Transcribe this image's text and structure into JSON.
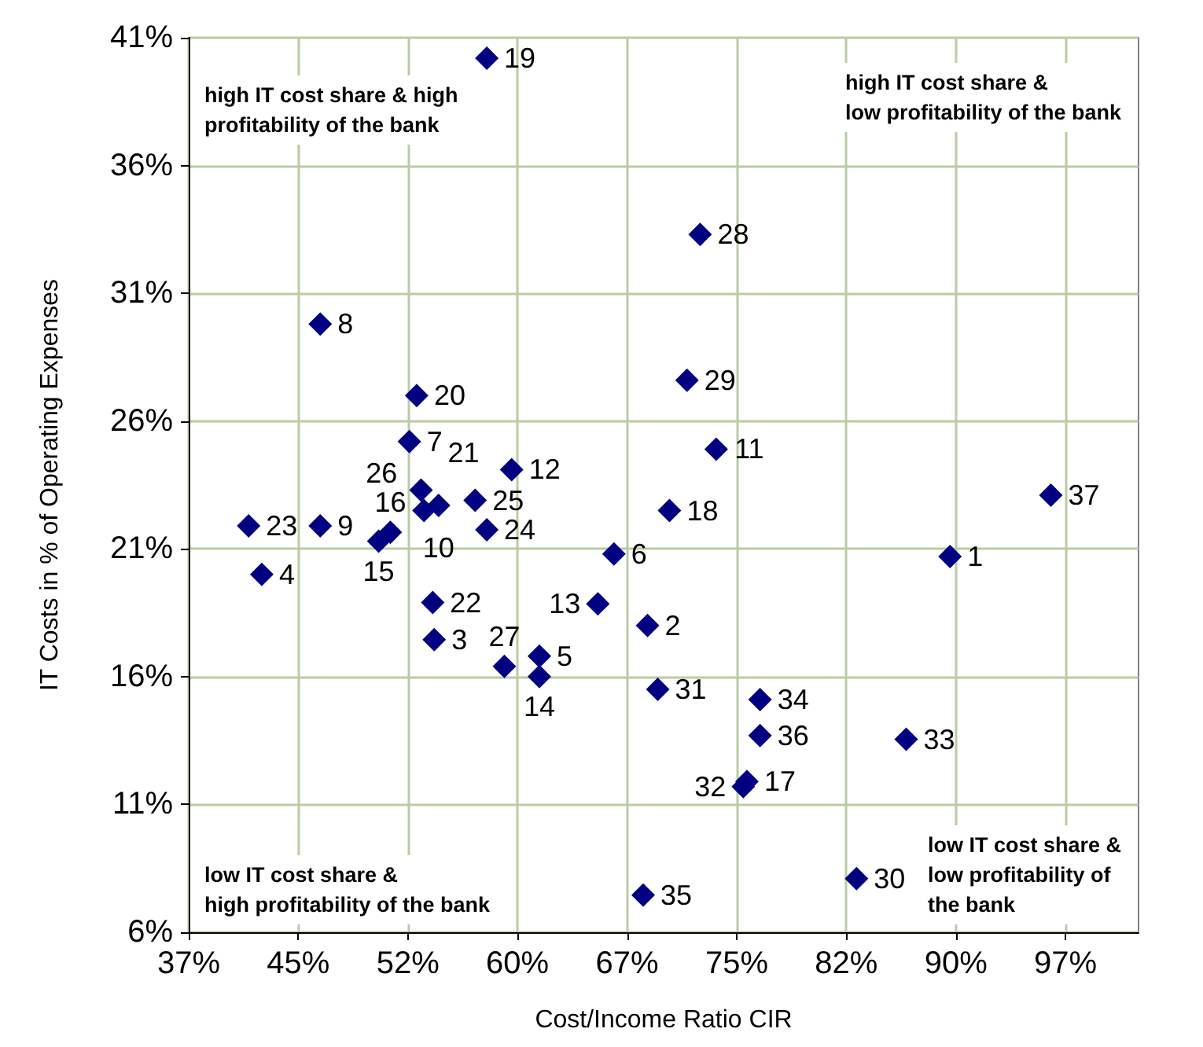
{
  "chart_data": {
    "type": "scatter",
    "xlabel": "Cost/Income Ratio CIR",
    "ylabel": "IT Costs in % of Operating Expenses",
    "x": [
      89.1,
      68.4,
      53.8,
      42.0,
      61.0,
      66.1,
      52.1,
      46.0,
      46.0,
      54.1,
      73.1,
      59.1,
      65.0,
      61.0,
      50.0,
      50.8,
      75.2,
      69.9,
      57.4,
      52.6,
      52.9,
      53.7,
      41.1,
      57.4,
      56.6,
      53.1,
      58.6,
      72.0,
      71.1,
      82.7,
      69.1,
      74.95,
      86.1,
      76.1,
      68.1,
      76.1,
      96.0
    ],
    "series": [
      {
        "color": "#000080",
        "values": [
          20.7,
          18.0,
          17.45,
          20.0,
          16.8,
          20.8,
          25.2,
          29.8,
          21.9,
          22.7,
          24.9,
          24.1,
          18.85,
          16.0,
          21.3,
          21.65,
          11.9,
          22.5,
          40.2,
          27.0,
          23.3,
          18.9,
          21.9,
          21.75,
          22.9,
          22.5,
          16.4,
          33.3,
          27.6,
          8.1,
          15.5,
          11.7,
          13.55,
          15.1,
          7.45,
          13.7,
          23.1
        ]
      }
    ],
    "value_labels": [
      "1",
      "2",
      "3",
      "4",
      "5",
      "6",
      "7",
      "8",
      "9",
      "10",
      "11",
      "12",
      "13",
      "14",
      "15",
      "16",
      "17",
      "18",
      "19",
      "20",
      "21",
      "22",
      "23",
      "24",
      "25",
      "26",
      "27",
      "28",
      "29",
      "30",
      "31",
      "32",
      "33",
      "34",
      "35",
      "36",
      "37"
    ],
    "annotations": [
      "high IT cost share & high profitability of the bank",
      "high IT cost share & low profitability of the bank",
      "low IT cost share & high profitability of the bank",
      "low IT cost share & low profitability of the bank"
    ],
    "xlim": [
      37,
      102
    ],
    "xticks": [
      {
        "value": 37,
        "label": "37%"
      },
      {
        "value": 44.5,
        "label": "45%"
      },
      {
        "value": 52,
        "label": "52%"
      },
      {
        "value": 59.5,
        "label": "60%"
      },
      {
        "value": 67,
        "label": "67%"
      },
      {
        "value": 74.5,
        "label": "75%"
      },
      {
        "value": 82,
        "label": "82%"
      },
      {
        "value": 89.5,
        "label": "90%"
      },
      {
        "value": 97,
        "label": "97%"
      }
    ],
    "ylim": [
      6,
      41
    ],
    "yticks": [
      {
        "value": 6,
        "label": "6%"
      },
      {
        "value": 11,
        "label": "11%"
      },
      {
        "value": 16,
        "label": "16%"
      },
      {
        "value": 21,
        "label": "21%"
      },
      {
        "value": 26,
        "label": "26%"
      },
      {
        "value": 31,
        "label": "31%"
      },
      {
        "value": 36,
        "label": "36%"
      },
      {
        "value": 41,
        "label": "41%"
      }
    ],
    "grid": true,
    "marker": "diamond"
  }
}
